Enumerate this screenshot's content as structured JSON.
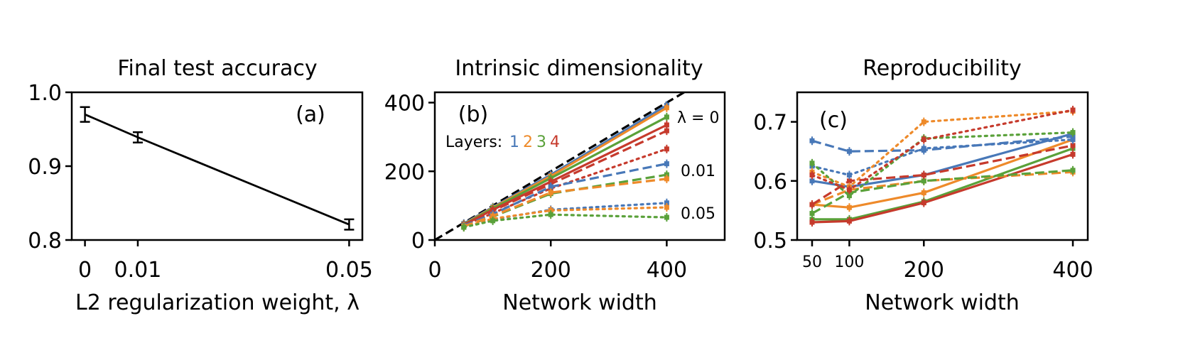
{
  "colors": {
    "layer1": "#4878b8",
    "layer2": "#ee8a2a",
    "layer3": "#5aa13a",
    "layer4": "#c63a2c",
    "black": "#000000"
  },
  "chart_data": [
    {
      "type": "line",
      "panel_label": "(a)",
      "title": "Final test accuracy",
      "xlabel": "L2 regularization weight, λ",
      "ylabel": "",
      "xlim": [
        -0.0025,
        0.0525
      ],
      "ylim": [
        0.8,
        1.0
      ],
      "xticks": [
        0,
        0.01,
        0.05
      ],
      "xtick_labels": [
        "0",
        "0.01",
        "0.05"
      ],
      "yticks": [
        0.8,
        0.9,
        1.0
      ],
      "ytick_labels": [
        "0.8",
        "0.9",
        "1.0"
      ],
      "series": [
        {
          "layer": 0,
          "x": [
            0,
            0.01,
            0.05
          ],
          "y": [
            0.97,
            0.939,
            0.821
          ],
          "err": [
            0.01,
            0.007,
            0.007
          ]
        }
      ]
    },
    {
      "type": "line",
      "panel_label": "(b)",
      "title": "Intrinsic dimensionality",
      "xlabel": "Network width",
      "ylabel": "",
      "xlim": [
        0,
        500
      ],
      "ylim": [
        0,
        430
      ],
      "xticks": [
        0,
        200,
        400
      ],
      "xtick_labels": [
        "0",
        "200",
        "400"
      ],
      "yticks": [
        0,
        200,
        400
      ],
      "ytick_labels": [
        "0",
        "200",
        "400"
      ],
      "legend": {
        "prefix": "Layers:",
        "items": [
          "1",
          "2",
          "3",
          "4"
        ]
      },
      "annotations": [
        {
          "text": "λ = 0",
          "near": [
            400,
            360
          ]
        },
        {
          "text": "0.01",
          "near": [
            400,
            205
          ]
        },
        {
          "text": "0.05",
          "near": [
            400,
            78
          ]
        }
      ],
      "identity_line": {
        "x": [
          0,
          430
        ],
        "y": [
          0,
          430
        ]
      },
      "series": [
        {
          "layer": 1,
          "style": "solid",
          "x": [
            50,
            100,
            200,
            400
          ],
          "y": [
            48,
            96,
            190,
            392
          ]
        },
        {
          "layer": 2,
          "style": "solid",
          "x": [
            50,
            100,
            200,
            400
          ],
          "y": [
            46,
            94,
            186,
            385
          ]
        },
        {
          "layer": 3,
          "style": "solid",
          "x": [
            50,
            100,
            200,
            400
          ],
          "y": [
            45,
            92,
            180,
            358
          ]
        },
        {
          "layer": 4,
          "style": "solid",
          "x": [
            50,
            100,
            200,
            400
          ],
          "y": [
            44,
            88,
            170,
            335
          ]
        },
        {
          "layer": 4,
          "style": "dashed",
          "x": [
            50,
            100,
            200,
            400
          ],
          "y": [
            43,
            85,
            163,
            318
          ]
        },
        {
          "layer": 4,
          "style": "dotted",
          "x": [
            50,
            100,
            200,
            400
          ],
          "y": [
            42,
            78,
            150,
            265
          ]
        },
        {
          "layer": 1,
          "style": "dashed",
          "x": [
            50,
            100,
            200,
            400
          ],
          "y": [
            42,
            75,
            155,
            222
          ]
        },
        {
          "layer": 3,
          "style": "dashed",
          "x": [
            50,
            100,
            200,
            400
          ],
          "y": [
            40,
            68,
            135,
            190
          ]
        },
        {
          "layer": 2,
          "style": "dashed",
          "x": [
            50,
            100,
            200,
            400
          ],
          "y": [
            40,
            70,
            138,
            178
          ]
        },
        {
          "layer": 1,
          "style": "dotted",
          "x": [
            50,
            100,
            200,
            400
          ],
          "y": [
            38,
            60,
            88,
            108
          ]
        },
        {
          "layer": 2,
          "style": "dotted",
          "x": [
            50,
            100,
            200,
            400
          ],
          "y": [
            38,
            62,
            86,
            95
          ]
        },
        {
          "layer": 3,
          "style": "dotted",
          "x": [
            50,
            100,
            200,
            400
          ],
          "y": [
            37,
            56,
            74,
            66
          ]
        }
      ]
    },
    {
      "type": "line",
      "panel_label": "(c)",
      "title": "Reproducibility",
      "xlabel": "Network width",
      "ylabel": "",
      "xlim": [
        30,
        420
      ],
      "ylim": [
        0.5,
        0.75
      ],
      "xticks": [
        50,
        100,
        200,
        400
      ],
      "xtick_labels": [
        "50",
        "100",
        "200",
        "400"
      ],
      "yticks": [
        0.5,
        0.6,
        0.7
      ],
      "ytick_labels": [
        "0.5",
        "0.6",
        "0.7"
      ],
      "series": [
        {
          "layer": 1,
          "style": "solid",
          "x": [
            50,
            100,
            200,
            400
          ],
          "y": [
            0.6,
            0.59,
            0.61,
            0.68
          ]
        },
        {
          "layer": 2,
          "style": "solid",
          "x": [
            50,
            100,
            200,
            400
          ],
          "y": [
            0.56,
            0.555,
            0.58,
            0.67
          ]
        },
        {
          "layer": 3,
          "style": "solid",
          "x": [
            50,
            100,
            200,
            400
          ],
          "y": [
            0.535,
            0.535,
            0.565,
            0.655
          ]
        },
        {
          "layer": 4,
          "style": "solid",
          "x": [
            50,
            100,
            200,
            400
          ],
          "y": [
            0.53,
            0.532,
            0.563,
            0.645
          ]
        },
        {
          "layer": 1,
          "style": "dashed",
          "x": [
            50,
            100,
            200,
            400
          ],
          "y": [
            0.668,
            0.65,
            0.652,
            0.675
          ]
        },
        {
          "layer": 2,
          "style": "dashed",
          "x": [
            50,
            100,
            200,
            400
          ],
          "y": [
            0.56,
            0.585,
            0.6,
            0.615
          ]
        },
        {
          "layer": 3,
          "style": "dashed",
          "x": [
            50,
            100,
            200,
            400
          ],
          "y": [
            0.545,
            0.58,
            0.6,
            0.618
          ]
        },
        {
          "layer": 4,
          "style": "dashed",
          "x": [
            50,
            100,
            200,
            400
          ],
          "y": [
            0.56,
            0.6,
            0.61,
            0.66
          ]
        },
        {
          "layer": 1,
          "style": "dotted",
          "x": [
            50,
            100,
            200,
            400
          ],
          "y": [
            0.625,
            0.61,
            0.655,
            0.67
          ]
        },
        {
          "layer": 2,
          "style": "dotted",
          "x": [
            50,
            100,
            200,
            400
          ],
          "y": [
            0.615,
            0.59,
            0.7,
            0.718
          ]
        },
        {
          "layer": 3,
          "style": "dotted",
          "x": [
            50,
            100,
            200,
            400
          ],
          "y": [
            0.63,
            0.575,
            0.672,
            0.682
          ]
        },
        {
          "layer": 4,
          "style": "dotted",
          "x": [
            50,
            100,
            200,
            400
          ],
          "y": [
            0.61,
            0.585,
            0.67,
            0.72
          ]
        }
      ]
    }
  ]
}
